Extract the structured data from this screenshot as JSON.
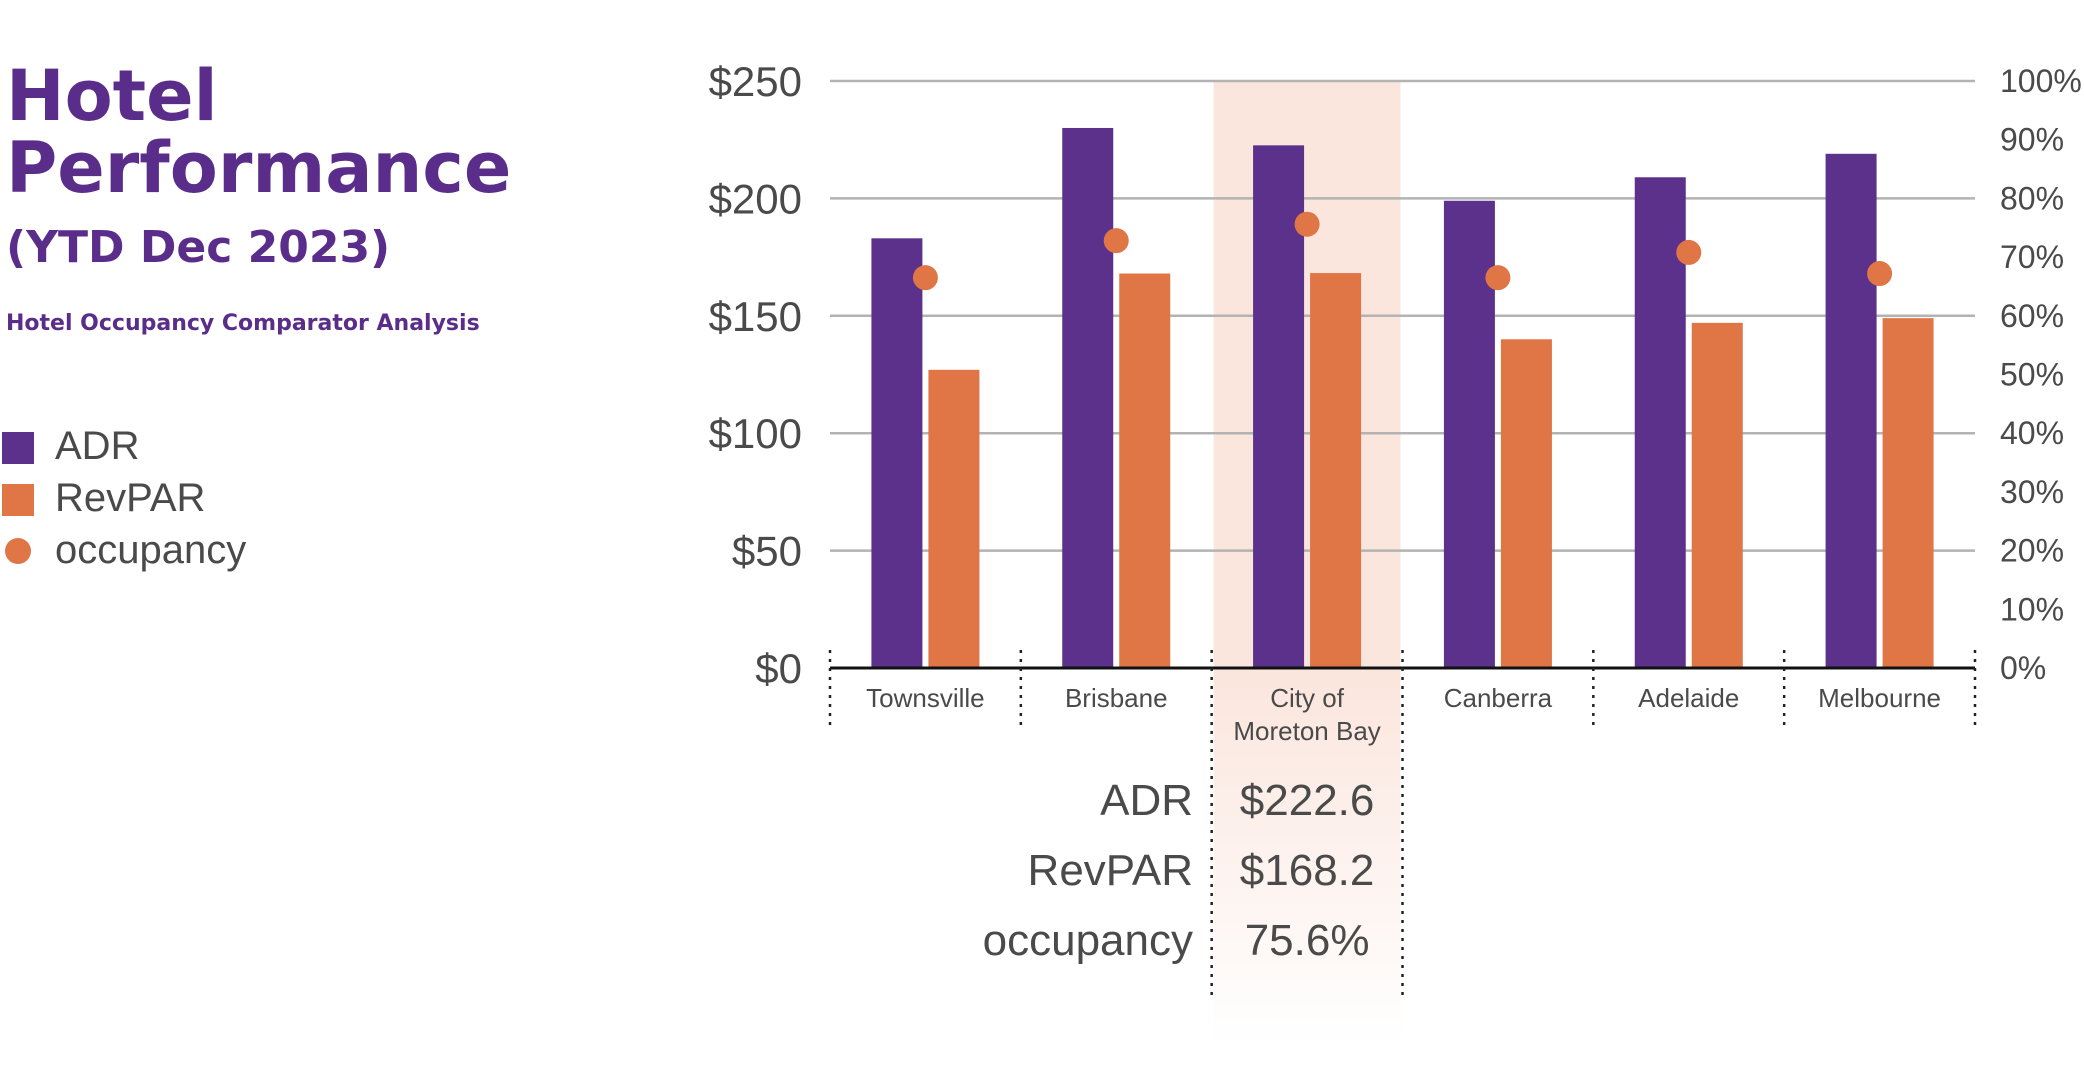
{
  "header": {
    "title_line1": "Hotel",
    "title_line2": "Performance",
    "period": "(YTD Dec 2023)",
    "subtitle": "Hotel Occupancy Comparator Analysis"
  },
  "legend": [
    {
      "label": "ADR",
      "marker": "square",
      "color": "#5b318b"
    },
    {
      "label": "RevPAR",
      "marker": "square",
      "color": "#e07546"
    },
    {
      "label": "occupancy",
      "marker": "circle",
      "color": "#e07546"
    }
  ],
  "colors": {
    "adr": "#5b318b",
    "revpar": "#e07546",
    "occupancy": "#e07546",
    "highlight": "#fbe6de",
    "grid": "#b3b3b3",
    "axis_text": "#4a4a4a"
  },
  "chart_data": {
    "type": "bar",
    "categories": [
      [
        "Townsville"
      ],
      [
        "Brisbane"
      ],
      [
        "City of",
        "Moreton Bay"
      ],
      [
        "Canberra"
      ],
      [
        "Adelaide"
      ],
      [
        "Melbourne"
      ]
    ],
    "series": [
      {
        "name": "ADR",
        "axis": "left",
        "type": "bar",
        "values": [
          183,
          230,
          222.6,
          199,
          209,
          219
        ]
      },
      {
        "name": "RevPAR",
        "axis": "left",
        "type": "bar",
        "values": [
          127,
          168,
          168.2,
          140,
          147,
          149
        ]
      },
      {
        "name": "occupancy",
        "axis": "right",
        "type": "scatter",
        "values": [
          66.5,
          72.8,
          75.6,
          66.5,
          70.8,
          67.2
        ]
      }
    ],
    "y_left": {
      "ticks": [
        "$0",
        "$50",
        "$100",
        "$150",
        "$200",
        "$250"
      ],
      "ylim": [
        0,
        250
      ]
    },
    "y_right": {
      "ticks": [
        "0%",
        "10%",
        "20%",
        "30%",
        "40%",
        "50%",
        "60%",
        "70%",
        "80%",
        "90%",
        "100%"
      ],
      "ylim": [
        0,
        100
      ]
    },
    "grid": true,
    "highlight_index": 2,
    "highlight_table": [
      {
        "label": "ADR",
        "value": "$222.6"
      },
      {
        "label": "RevPAR",
        "value": "$168.2"
      },
      {
        "label": "occupancy",
        "value": "75.6%"
      }
    ]
  }
}
